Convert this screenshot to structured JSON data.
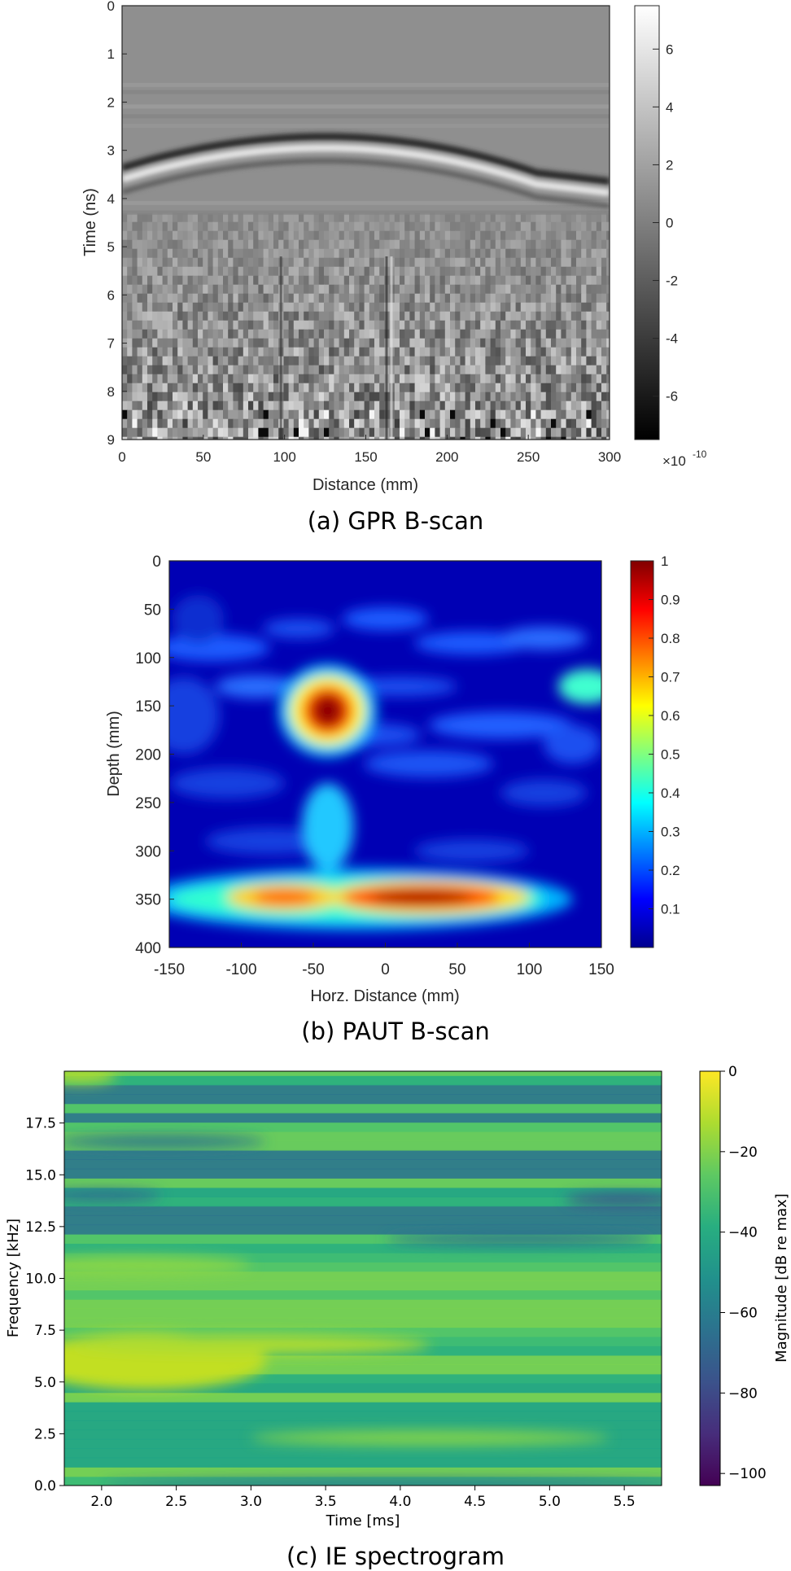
{
  "colors": {
    "gpr_colormap": "gray",
    "paut_colormap": "jet",
    "ie_colormap": "viridis"
  },
  "chart_data": [
    {
      "type": "heatmap",
      "caption": "(a) GPR B-scan",
      "xlabel": "Distance (mm)",
      "ylabel": "Time (ns)",
      "xlim": [
        0,
        300
      ],
      "ylim": [
        0,
        9
      ],
      "x_ticks": [
        "0",
        "50",
        "100",
        "150",
        "200",
        "250",
        "300"
      ],
      "y_ticks": [
        "0",
        "1",
        "2",
        "3",
        "4",
        "5",
        "6",
        "7",
        "8",
        "9"
      ],
      "y_reversed": true,
      "colormap": "gray",
      "colorbar": {
        "ticks": [
          "6",
          "4",
          "2",
          "0",
          "-2",
          "-4",
          "-6"
        ],
        "tick_values": [
          6,
          4,
          2,
          0,
          -2,
          -4,
          -6
        ],
        "range": [
          -7.5,
          7.5
        ],
        "exponent_label": "×10",
        "exponent": "-10"
      },
      "features": [
        {
          "description_value": "hyperbolic reflection",
          "apex_x": 125,
          "apex_t": 2.85,
          "left_x": 0,
          "left_t": 3.5,
          "right_x": 255,
          "right_t": 3.6
        }
      ]
    },
    {
      "type": "heatmap",
      "caption": "(b) PAUT B-scan",
      "xlabel": "Horz. Distance (mm)",
      "ylabel": "Depth (mm)",
      "xlim": [
        -150,
        150
      ],
      "ylim": [
        0,
        400
      ],
      "x_ticks": [
        "-150",
        "-100",
        "-50",
        "0",
        "50",
        "100",
        "150"
      ],
      "y_ticks": [
        "0",
        "50",
        "100",
        "150",
        "200",
        "250",
        "300",
        "350",
        "400"
      ],
      "y_reversed": true,
      "colormap": "jet",
      "colorbar": {
        "ticks": [
          "1",
          "0.9",
          "0.8",
          "0.7",
          "0.6",
          "0.5",
          "0.4",
          "0.3",
          "0.2",
          "0.1"
        ],
        "tick_values": [
          1,
          0.9,
          0.8,
          0.7,
          0.6,
          0.5,
          0.4,
          0.3,
          0.2,
          0.1
        ],
        "range": [
          0,
          1
        ]
      },
      "hotspots": [
        {
          "x": -40,
          "y": 155,
          "value": 1.0
        },
        {
          "x": 25,
          "y": 348,
          "value": 0.98
        },
        {
          "x": -70,
          "y": 348,
          "value": 0.7
        },
        {
          "x": 140,
          "y": 130,
          "value": 0.45
        },
        {
          "x": -40,
          "y": 270,
          "value": 0.35
        }
      ]
    },
    {
      "type": "heatmap",
      "caption": "(c) IE spectrogram",
      "xlabel": "Time [ms]",
      "ylabel": "Frequency [kHz]",
      "xlim": [
        1.75,
        5.75
      ],
      "ylim": [
        0,
        20
      ],
      "x_ticks": [
        "2.0",
        "2.5",
        "3.0",
        "3.5",
        "4.0",
        "4.5",
        "5.0",
        "5.5"
      ],
      "y_ticks": [
        "0.0",
        "2.5",
        "5.0",
        "7.5",
        "10.0",
        "12.5",
        "15.0",
        "17.5"
      ],
      "colormap": "viridis",
      "colorbar": {
        "label": "Magnitude [dB re max]",
        "ticks": [
          "0",
          "−20",
          "−40",
          "−60",
          "−80",
          "−100"
        ],
        "tick_values": [
          0,
          -20,
          -40,
          -60,
          -80,
          -100
        ],
        "range": [
          -103,
          0
        ]
      },
      "peak": {
        "time": 2.0,
        "frequency": 5.8,
        "value": 0
      }
    }
  ]
}
